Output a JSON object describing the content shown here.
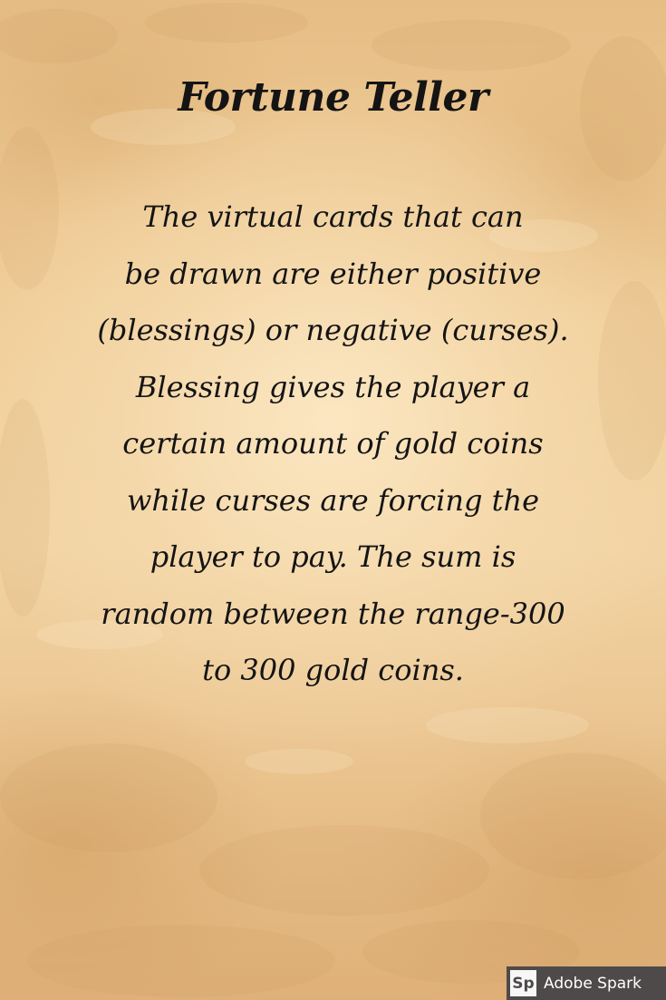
{
  "page": {
    "title": "Fortune Teller",
    "body_lines": [
      "The virtual cards that can",
      "be drawn are either positive",
      "(blessings) or negative (curses).",
      "Blessing gives the player a",
      "certain amount of gold coins",
      "while curses are forcing the",
      "player to pay. The sum is",
      "random between the range-300",
      "to 300 gold coins."
    ]
  },
  "badge": {
    "logo": "Sp",
    "label": "Adobe Spark"
  },
  "colors": {
    "text": "#141414",
    "parchment": "#f0cd98",
    "badge_bg": "#4f4a4a"
  }
}
